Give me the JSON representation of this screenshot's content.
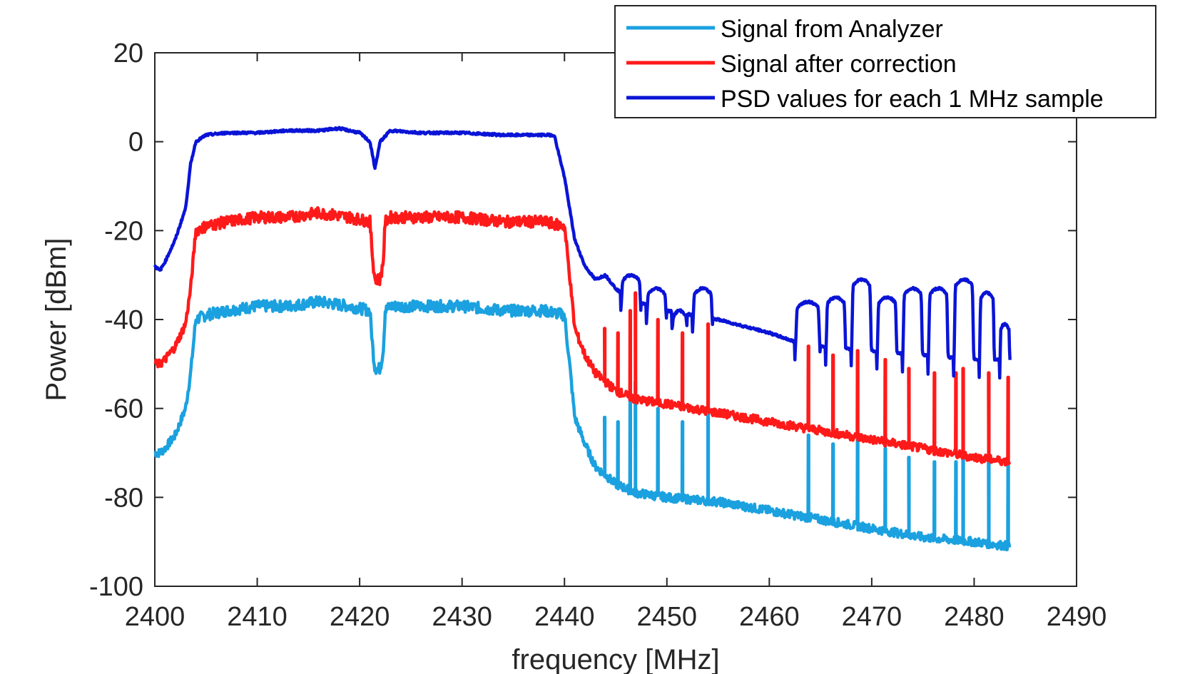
{
  "chart_data": {
    "type": "line",
    "xlabel": "frequency [MHz]",
    "ylabel": "Power [dBm]",
    "xlim": [
      2400,
      2490
    ],
    "ylim": [
      -100,
      20
    ],
    "xticks": [
      2400,
      2410,
      2420,
      2430,
      2440,
      2450,
      2460,
      2470,
      2480,
      2490
    ],
    "yticks": [
      20,
      0,
      -20,
      -40,
      -60,
      -80,
      -100
    ],
    "grid": false,
    "legend_position": "top-right",
    "series": [
      {
        "name": "Signal from Analyzer",
        "color": "#1ba1df",
        "x": [
          2400,
          2400.5,
          2401,
          2402,
          2403,
          2403.5,
          2404,
          2405,
          2407,
          2410,
          2413,
          2416,
          2419,
          2421,
          2421.3,
          2421.5,
          2422,
          2422.3,
          2422.5,
          2423,
          2426,
          2430,
          2434,
          2438,
          2440,
          2440.5,
          2441,
          2442,
          2443,
          2444,
          2445,
          2446,
          2447,
          2450,
          2455,
          2460,
          2465,
          2470,
          2475,
          2480,
          2483.5
        ],
        "y": [
          -70,
          -70,
          -69,
          -66,
          -60,
          -52,
          -40,
          -39,
          -38,
          -37,
          -37,
          -36,
          -37,
          -38,
          -47,
          -51,
          -51,
          -47,
          -38,
          -37,
          -37,
          -37,
          -38,
          -38,
          -39,
          -50,
          -62,
          -68,
          -73,
          -75,
          -77,
          -78,
          -79,
          -80,
          -81,
          -83,
          -85,
          -87,
          -89,
          -90,
          -91
        ]
      },
      {
        "name": "Signal after correction",
        "color": "#ff1a1a",
        "x": [
          2400,
          2400.5,
          2401,
          2402,
          2403,
          2403.5,
          2404,
          2405,
          2407,
          2410,
          2413,
          2416,
          2419,
          2421,
          2421.3,
          2421.5,
          2422,
          2422.3,
          2422.5,
          2423,
          2426,
          2430,
          2434,
          2438,
          2440,
          2440.5,
          2441,
          2442,
          2443,
          2444,
          2445,
          2446,
          2447,
          2450,
          2455,
          2460,
          2465,
          2470,
          2475,
          2480,
          2483.5
        ],
        "y": [
          -50,
          -50,
          -49,
          -46,
          -41,
          -33,
          -20,
          -19,
          -18,
          -17,
          -17,
          -16,
          -17,
          -18,
          -27,
          -31,
          -31,
          -27,
          -18,
          -17,
          -17,
          -17,
          -18,
          -18,
          -19,
          -30,
          -42,
          -48,
          -52,
          -54,
          -56,
          -57,
          -58,
          -59,
          -61,
          -63,
          -65,
          -67,
          -69,
          -71,
          -72
        ]
      },
      {
        "name": "PSD values for each 1 MHz sample",
        "color": "#0a14d6",
        "x": [
          2400,
          2400.5,
          2401,
          2402,
          2403,
          2403.5,
          2404,
          2405,
          2407,
          2410,
          2413,
          2416,
          2418,
          2420,
          2421,
          2421.5,
          2422,
          2423,
          2426,
          2430,
          2434,
          2438,
          2439,
          2440,
          2441,
          2442,
          2443,
          2444,
          2445,
          2446,
          2447,
          2450,
          2455,
          2460,
          2462.5,
          2465,
          2470,
          2475,
          2480,
          2483.5
        ],
        "y": [
          -28,
          -29,
          -27,
          -22,
          -15,
          -5,
          0,
          1.5,
          2,
          2,
          2.5,
          2.5,
          3,
          2,
          0,
          -6,
          0,
          2.5,
          2,
          2,
          1.5,
          1.5,
          1.5,
          -8,
          -22,
          -28,
          -31,
          -30,
          -33,
          -35,
          -36,
          -38,
          -40,
          -43,
          -45,
          -46,
          -47,
          -48,
          -49,
          -49
        ]
      }
    ],
    "peaks": {
      "analyzer": [
        [
          2443.9,
          -62
        ],
        [
          2445.2,
          -63
        ],
        [
          2446.4,
          -58
        ],
        [
          2446.9,
          -54
        ],
        [
          2449.1,
          -60
        ],
        [
          2451.5,
          -63
        ],
        [
          2454,
          -61
        ],
        [
          2463.8,
          -66
        ],
        [
          2466.2,
          -68
        ],
        [
          2468.6,
          -67
        ],
        [
          2471.3,
          -69
        ],
        [
          2473.6,
          -71
        ],
        [
          2476.1,
          -72
        ],
        [
          2478.2,
          -72
        ],
        [
          2478.9,
          -71
        ],
        [
          2481.4,
          -72
        ],
        [
          2483.3,
          -73
        ]
      ],
      "correction": [
        [
          2443.9,
          -42
        ],
        [
          2445.2,
          -43
        ],
        [
          2446.4,
          -38
        ],
        [
          2446.9,
          -34
        ],
        [
          2449.1,
          -40
        ],
        [
          2451.5,
          -43
        ],
        [
          2454,
          -41
        ],
        [
          2463.8,
          -46
        ],
        [
          2466.2,
          -48
        ],
        [
          2468.6,
          -47
        ],
        [
          2471.3,
          -49
        ],
        [
          2473.6,
          -51
        ],
        [
          2476.1,
          -52
        ],
        [
          2478.2,
          -52
        ],
        [
          2478.9,
          -51
        ],
        [
          2481.4,
          -52
        ],
        [
          2483.3,
          -53
        ]
      ],
      "psd": [
        [
          2445.5,
          2447.5,
          -30
        ],
        [
          2448,
          2450,
          -33
        ],
        [
          2450.5,
          2452,
          -38
        ],
        [
          2452.5,
          2454.5,
          -33
        ],
        [
          2462.5,
          2465,
          -36
        ],
        [
          2465.5,
          2467.5,
          -35
        ],
        [
          2468,
          2470,
          -31
        ],
        [
          2470.5,
          2472.5,
          -35
        ],
        [
          2473,
          2475,
          -33
        ],
        [
          2475.5,
          2477.5,
          -33
        ],
        [
          2478,
          2480,
          -31
        ],
        [
          2480.5,
          2482,
          -34
        ],
        [
          2482.5,
          2483.5,
          -41
        ]
      ]
    }
  }
}
